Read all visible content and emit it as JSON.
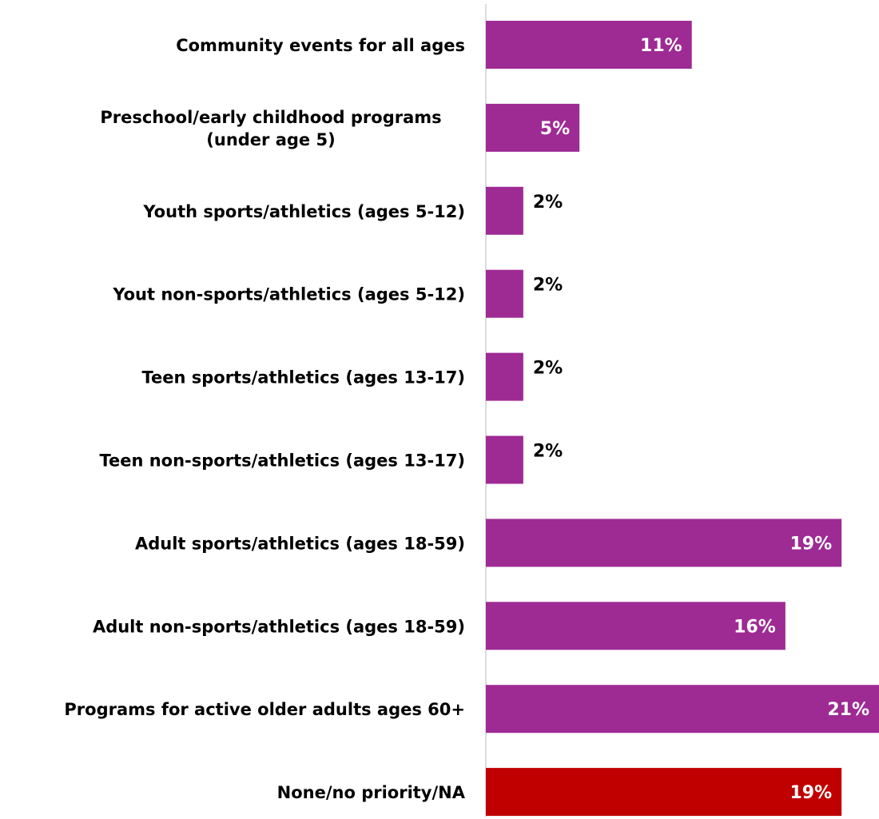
{
  "chart_data": {
    "type": "bar",
    "orientation": "horizontal",
    "categories": [
      "Community events for all ages",
      "Preschool/early childhood programs (under age 5)",
      "Youth sports/athletics (ages 5-12)",
      "Yout non-sports/athletics (ages 5-12)",
      "Teen sports/athletics (ages 13-17)",
      "Teen non-sports/athletics (ages 13-17)",
      "Adult sports/athletics (ages 18-59)",
      "Adult non-sports/athletics (ages 18-59)",
      "Programs for active older adults ages 60+",
      "None/no priority/NA"
    ],
    "category_lines": [
      [
        "Community events for all ages"
      ],
      [
        "Preschool/early childhood programs",
        "(under age 5)"
      ],
      [
        "Youth sports/athletics (ages 5-12)"
      ],
      [
        "Yout non-sports/athletics (ages 5-12)"
      ],
      [
        "Teen sports/athletics (ages 13-17)"
      ],
      [
        "Teen non-sports/athletics (ages 13-17)"
      ],
      [
        "Adult sports/athletics (ages 18-59)"
      ],
      [
        "Adult non-sports/athletics (ages 18-59)"
      ],
      [
        "Programs for active older adults ages 60+"
      ],
      [
        "None/no priority/NA"
      ]
    ],
    "values": [
      11,
      5,
      2,
      2,
      2,
      2,
      19,
      16,
      21,
      19
    ],
    "value_labels": [
      "11%",
      "5%",
      "2%",
      "2%",
      "2%",
      "2%",
      "19%",
      "16%",
      "21%",
      "19%"
    ],
    "unit": "%",
    "xlim": [
      0,
      21
    ],
    "colors": [
      "#9e2a94",
      "#9e2a94",
      "#9e2a94",
      "#9e2a94",
      "#9e2a94",
      "#9e2a94",
      "#9e2a94",
      "#9e2a94",
      "#9e2a94",
      "#c00000"
    ],
    "title": "",
    "xlabel": "",
    "ylabel": "",
    "grid": false,
    "legend": "none"
  }
}
